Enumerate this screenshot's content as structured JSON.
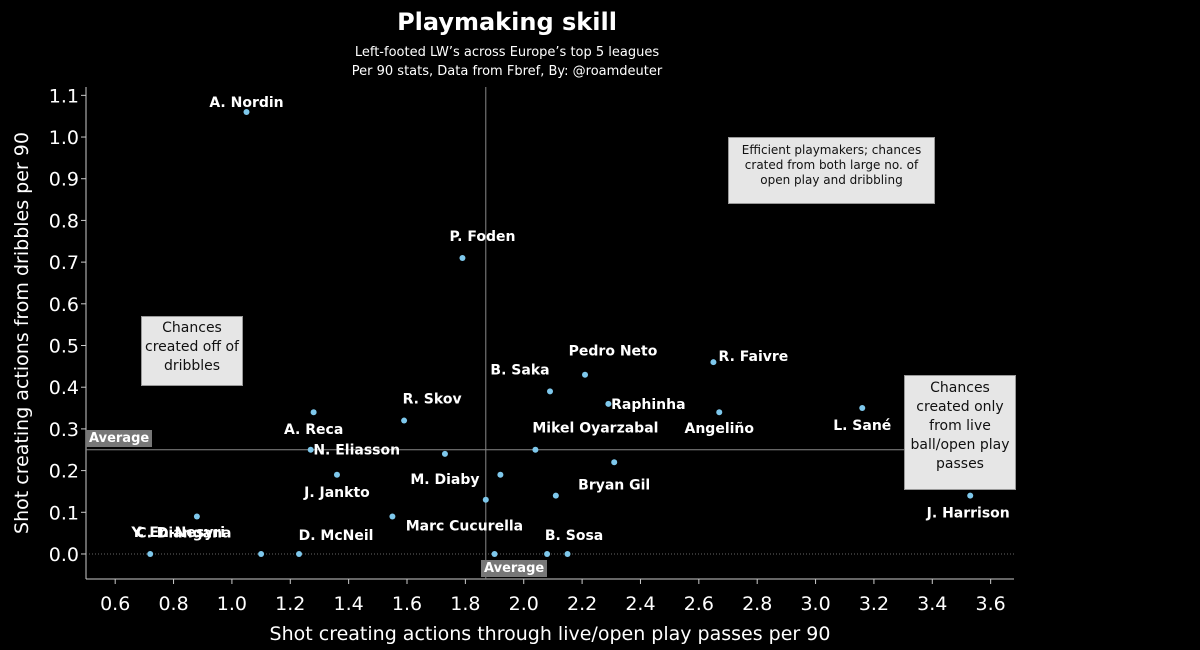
{
  "header": {
    "title": "Playmaking skill",
    "subtitle1": "Left-footed LW’s across Europe’s top 5 leagues",
    "subtitle2": "Per 90 stats, Data from Fbref, By: @roamdeuter"
  },
  "annotations": {
    "efficient": "Efficient playmakers; chances crated from both large no. of open play and dribbling",
    "dribbles": "Chances created off of dribbles",
    "passes": "Chances created only from live ball/open play passes",
    "avg_y": "Average",
    "avg_x": "Average"
  },
  "colors": {
    "point": "#7ec8ec",
    "background": "#000000",
    "avgline": "#888888"
  },
  "chart_data": {
    "type": "scatter",
    "title": "Playmaking skill",
    "xlabel": "Shot creating actions through live/open play passes per 90",
    "ylabel": "Shot creating actions from dribbles per 90",
    "xlim": [
      0.5,
      3.68
    ],
    "ylim": [
      -0.06,
      1.12
    ],
    "xticks": [
      0.6,
      0.8,
      1.0,
      1.2,
      1.4,
      1.6,
      1.8,
      2.0,
      2.2,
      2.4,
      2.6,
      2.8,
      3.0,
      3.2,
      3.4,
      3.6
    ],
    "yticks": [
      0.0,
      0.1,
      0.2,
      0.3,
      0.4,
      0.5,
      0.6,
      0.7,
      0.8,
      0.9,
      1.0,
      1.1
    ],
    "avg_x": 1.87,
    "avg_y": 0.25,
    "points": [
      {
        "label": "A. Nordin",
        "x": 1.05,
        "y": 1.06
      },
      {
        "label": "P. Foden",
        "x": 1.79,
        "y": 0.71
      },
      {
        "label": "R. Faivre",
        "x": 2.65,
        "y": 0.46
      },
      {
        "label": "Pedro Neto",
        "x": 2.21,
        "y": 0.43
      },
      {
        "label": "B. Saka",
        "x": 2.09,
        "y": 0.39
      },
      {
        "label": "Raphinha",
        "x": 2.29,
        "y": 0.36
      },
      {
        "label": "Angeliño",
        "x": 2.67,
        "y": 0.34
      },
      {
        "label": "L. Sané",
        "x": 3.16,
        "y": 0.35
      },
      {
        "label": "A. Reca",
        "x": 1.28,
        "y": 0.34
      },
      {
        "label": "R. Skov",
        "x": 1.59,
        "y": 0.32
      },
      {
        "label": "N. Eliasson",
        "x": 1.27,
        "y": 0.25
      },
      {
        "label": "Mikel Oyarzabal",
        "x": 2.04,
        "y": 0.25
      },
      {
        "label": "M. Diaby",
        "x": 1.73,
        "y": 0.24
      },
      {
        "label": "Bryan Gil",
        "x": 2.31,
        "y": 0.22
      },
      {
        "label": "J. Jankto",
        "x": 1.36,
        "y": 0.19
      },
      {
        "label": "",
        "x": 1.92,
        "y": 0.19
      },
      {
        "label": "",
        "x": 2.11,
        "y": 0.14
      },
      {
        "label": "J. Harrison",
        "x": 3.53,
        "y": 0.14
      },
      {
        "label": "",
        "x": 1.87,
        "y": 0.13
      },
      {
        "label": "Marc Cucurella",
        "x": 1.55,
        "y": 0.09
      },
      {
        "label": "C. Diangana",
        "x": 0.88,
        "y": 0.09
      },
      {
        "label": "Y. En-Nesyri",
        "x": 0.72,
        "y": 0.0
      },
      {
        "label": "",
        "x": 1.1,
        "y": 0.0
      },
      {
        "label": "D. McNeil",
        "x": 1.23,
        "y": 0.0
      },
      {
        "label": "",
        "x": 1.9,
        "y": 0.0
      },
      {
        "label": "B. Sosa",
        "x": 2.08,
        "y": 0.0
      },
      {
        "label": "",
        "x": 2.15,
        "y": 0.0
      }
    ]
  }
}
